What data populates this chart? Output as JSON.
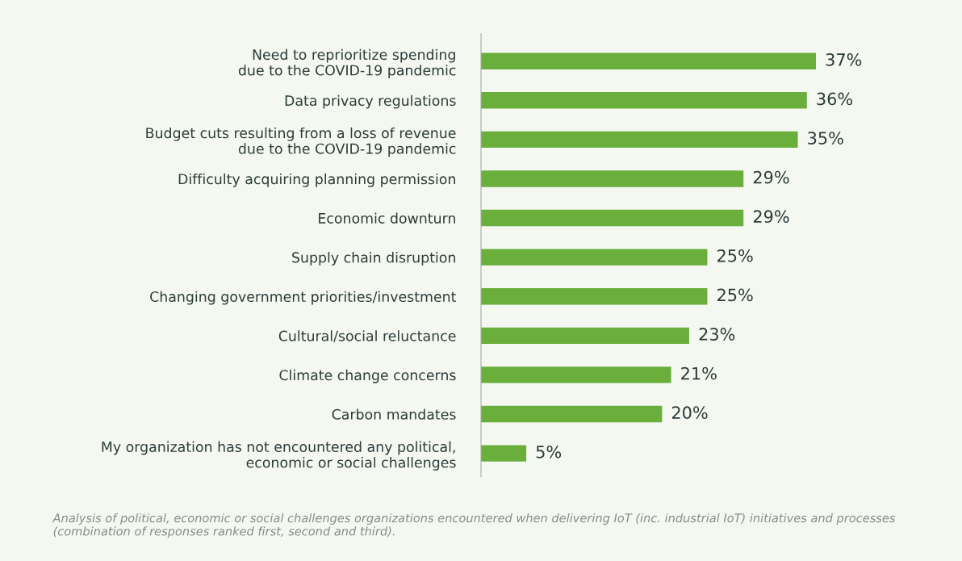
{
  "chart_data": {
    "type": "bar",
    "orientation": "horizontal",
    "categories": [
      "Need to reprioritize spending\ndue to the COVID-19 pandemic",
      "Data privacy regulations",
      "Budget cuts resulting from a loss of revenue\ndue to the COVID-19 pandemic",
      "Difficulty acquiring planning permission",
      "Economic downturn",
      "Supply chain disruption",
      "Changing government priorities/investment",
      "Cultural/social reluctance",
      "Climate change concerns",
      "Carbon mandates",
      "My organization has not encountered any political,\neconomic or social challenges"
    ],
    "values": [
      37,
      36,
      35,
      29,
      29,
      25,
      25,
      23,
      21,
      20,
      5
    ],
    "value_labels": [
      "37%",
      "36%",
      "35%",
      "29%",
      "29%",
      "25%",
      "25%",
      "23%",
      "21%",
      "20%",
      "5%"
    ],
    "color": "#6aae3c",
    "tick_labels": "y",
    "legend": false,
    "annotations": [
      "Analysis of political, economic or social challenges organizations encountered when delivering IoT (inc. industrial IoT) initiatives and processes (combination of responses ranked first, second and third)."
    ]
  }
}
